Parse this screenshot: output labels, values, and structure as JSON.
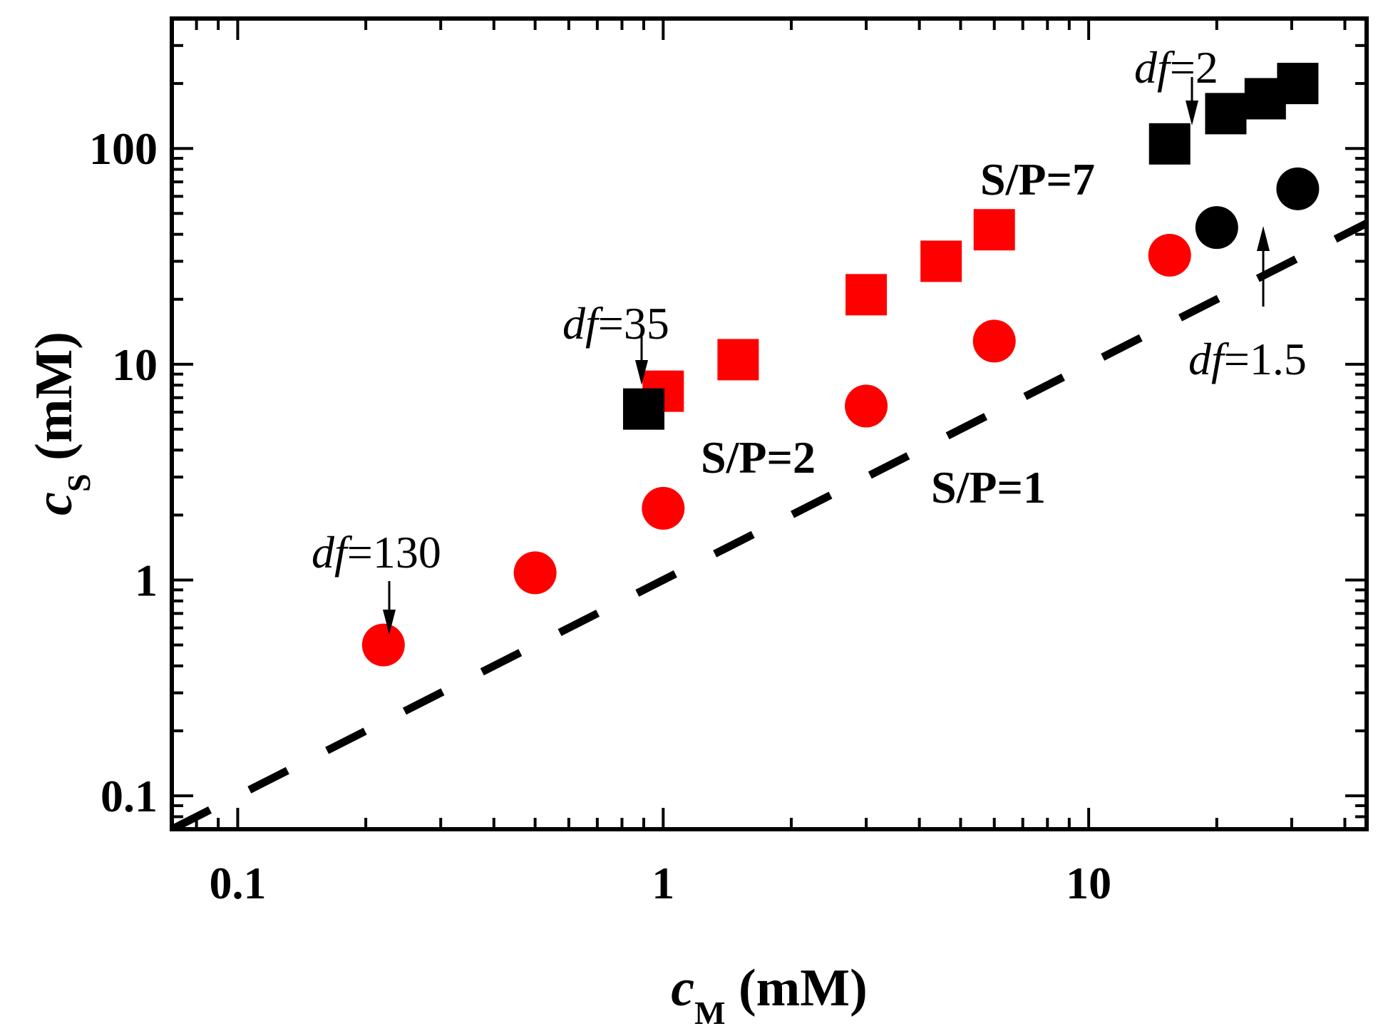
{
  "chart_data": {
    "type": "scatter",
    "x_scale": "log",
    "y_scale": "log",
    "xlim": [
      0.07,
      45
    ],
    "ylim": [
      0.07,
      400
    ],
    "xlabel": {
      "main": "c",
      "sub": "M",
      "unit": " (mM)"
    },
    "ylabel": {
      "main": "c",
      "sub": "S",
      "unit": " (mM)"
    },
    "x_ticks": [
      {
        "value": 0.1,
        "label": "0.1"
      },
      {
        "value": 1,
        "label": "1"
      },
      {
        "value": 10,
        "label": "10"
      }
    ],
    "y_ticks": [
      {
        "value": 0.1,
        "label": "0.1"
      },
      {
        "value": 1,
        "label": "1"
      },
      {
        "value": 10,
        "label": "10"
      },
      {
        "value": 100,
        "label": "100"
      }
    ],
    "series": [
      {
        "name": "red squares",
        "marker": "square",
        "color": "#ff0000",
        "points": [
          [
            1.0,
            7.5
          ],
          [
            1.5,
            10.5
          ],
          [
            3.0,
            21
          ],
          [
            4.5,
            30
          ],
          [
            6.0,
            42
          ]
        ]
      },
      {
        "name": "black squares",
        "marker": "square",
        "color": "#000000",
        "points": [
          [
            0.9,
            6.2
          ],
          [
            15.5,
            105
          ],
          [
            21,
            145
          ],
          [
            26,
            170
          ],
          [
            31,
            200
          ]
        ]
      },
      {
        "name": "red circles",
        "marker": "circle",
        "color": "#ff0000",
        "points": [
          [
            0.22,
            0.5
          ],
          [
            0.5,
            1.08
          ],
          [
            1.0,
            2.15
          ],
          [
            3.0,
            6.4
          ],
          [
            6.0,
            12.8
          ],
          [
            15.5,
            32
          ]
        ]
      },
      {
        "name": "black circles",
        "marker": "circle",
        "color": "#000000",
        "points": [
          [
            20,
            43
          ],
          [
            31,
            65
          ]
        ]
      }
    ],
    "reference_line": {
      "label": "S/P=1",
      "slope": 1,
      "x_range": [
        0.07,
        45
      ],
      "style": "dashed",
      "color": "#000000"
    },
    "annotations": {
      "sp7": "S/P=7",
      "sp2": "S/P=2",
      "sp1": "S/P=1",
      "df_prefix": "df",
      "df130": "=130",
      "df35": "=35",
      "df2": "=2",
      "df15": "=1.5"
    }
  }
}
